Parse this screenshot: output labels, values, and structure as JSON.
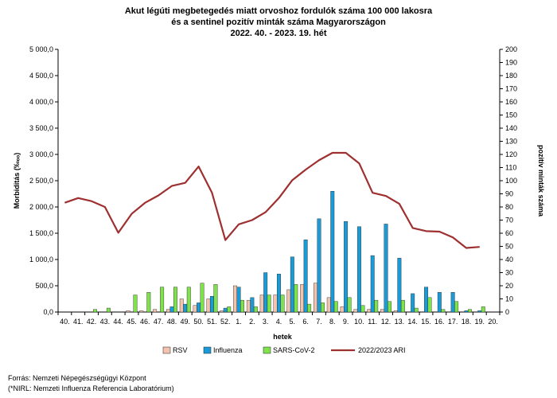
{
  "chart_data": {
    "type": "bar",
    "title": [
      "Akut légúti megbetegedés miatt orvoshoz fordulók száma 100 000 lakosra",
      "és a sentinel pozitív minták száma Magyarországon",
      "2022. 40. - 2023. 19. hét"
    ],
    "xlabel": "hetek",
    "ylabel": "Morbiditás (‰ₒₒ)",
    "y2label": "pozitív minták száma",
    "ylim": [
      0,
      5000
    ],
    "y2lim": [
      0,
      200
    ],
    "yticks": [
      "0,0",
      "500,0",
      "1 000,0",
      "1 500,0",
      "2 000,0",
      "2 500,0",
      "3 000,0",
      "3 500,0",
      "4 000,0",
      "4 500,0",
      "5 000,0"
    ],
    "y2ticks": [
      "0",
      "10",
      "20",
      "30",
      "40",
      "50",
      "60",
      "70",
      "80",
      "90",
      "100",
      "110",
      "120",
      "130",
      "140",
      "150",
      "160",
      "170",
      "180",
      "190",
      "200"
    ],
    "categories": [
      "40.",
      "41.",
      "42.",
      "43.",
      "44.",
      "45.",
      "46.",
      "47.",
      "48.",
      "49.",
      "50.",
      "51.",
      "52.",
      "1.",
      "2.",
      "3.",
      "4.",
      "5.",
      "6.",
      "7.",
      "8.",
      "9.",
      "10.",
      "11.",
      "12.",
      "13.",
      "14.",
      "15.",
      "16.",
      "17.",
      "18.",
      "19.",
      "20."
    ],
    "series": [
      {
        "name": "RSV",
        "kind": "bar",
        "axis": "right",
        "color": "#f2c3ad",
        "values": [
          0,
          0,
          0,
          0,
          0,
          1,
          1,
          2,
          2,
          10,
          5,
          10,
          1,
          20,
          9,
          13,
          13,
          17,
          21,
          22,
          11,
          4,
          2,
          2,
          2,
          1,
          0,
          0,
          0,
          0,
          0,
          0,
          0
        ]
      },
      {
        "name": "Influenza",
        "kind": "bar",
        "axis": "right",
        "color": "#1a9bd7",
        "values": [
          0,
          0,
          0,
          0,
          0,
          0,
          0,
          0,
          4,
          6,
          7,
          12,
          3,
          19,
          11,
          30,
          29,
          42,
          55,
          71,
          92,
          69,
          65,
          43,
          67,
          41,
          14,
          19,
          15,
          15,
          1,
          1,
          0
        ]
      },
      {
        "name": "SARS-CoV-2",
        "kind": "bar",
        "axis": "right",
        "color": "#7fe24a",
        "values": [
          0,
          0,
          2,
          3,
          0,
          13,
          15,
          19,
          19,
          19,
          22,
          21,
          4,
          9,
          4,
          13,
          13,
          21,
          6,
          7,
          8,
          11,
          5,
          9,
          8,
          9,
          3,
          11,
          2,
          8,
          2,
          4,
          0
        ]
      },
      {
        "name": "2022/2023 ARI",
        "kind": "line",
        "axis": "left",
        "color": "#9e3030",
        "values": [
          2080,
          2170,
          2110,
          2000,
          1510,
          1870,
          2080,
          2220,
          2400,
          2460,
          2770,
          2270,
          1370,
          1670,
          1750,
          1900,
          2170,
          2510,
          2710,
          2890,
          3030,
          3030,
          2830,
          2270,
          2210,
          2060,
          1600,
          1540,
          1530,
          1420,
          1220,
          1240,
          null
        ]
      }
    ],
    "legend_position": "bottom",
    "grid": false
  },
  "footer": {
    "source": "Forrás: Nemzeti Népegészségügyi Központ",
    "note": "(*NIRL: Nemzeti Influenza Referencia Laboratórium)"
  }
}
